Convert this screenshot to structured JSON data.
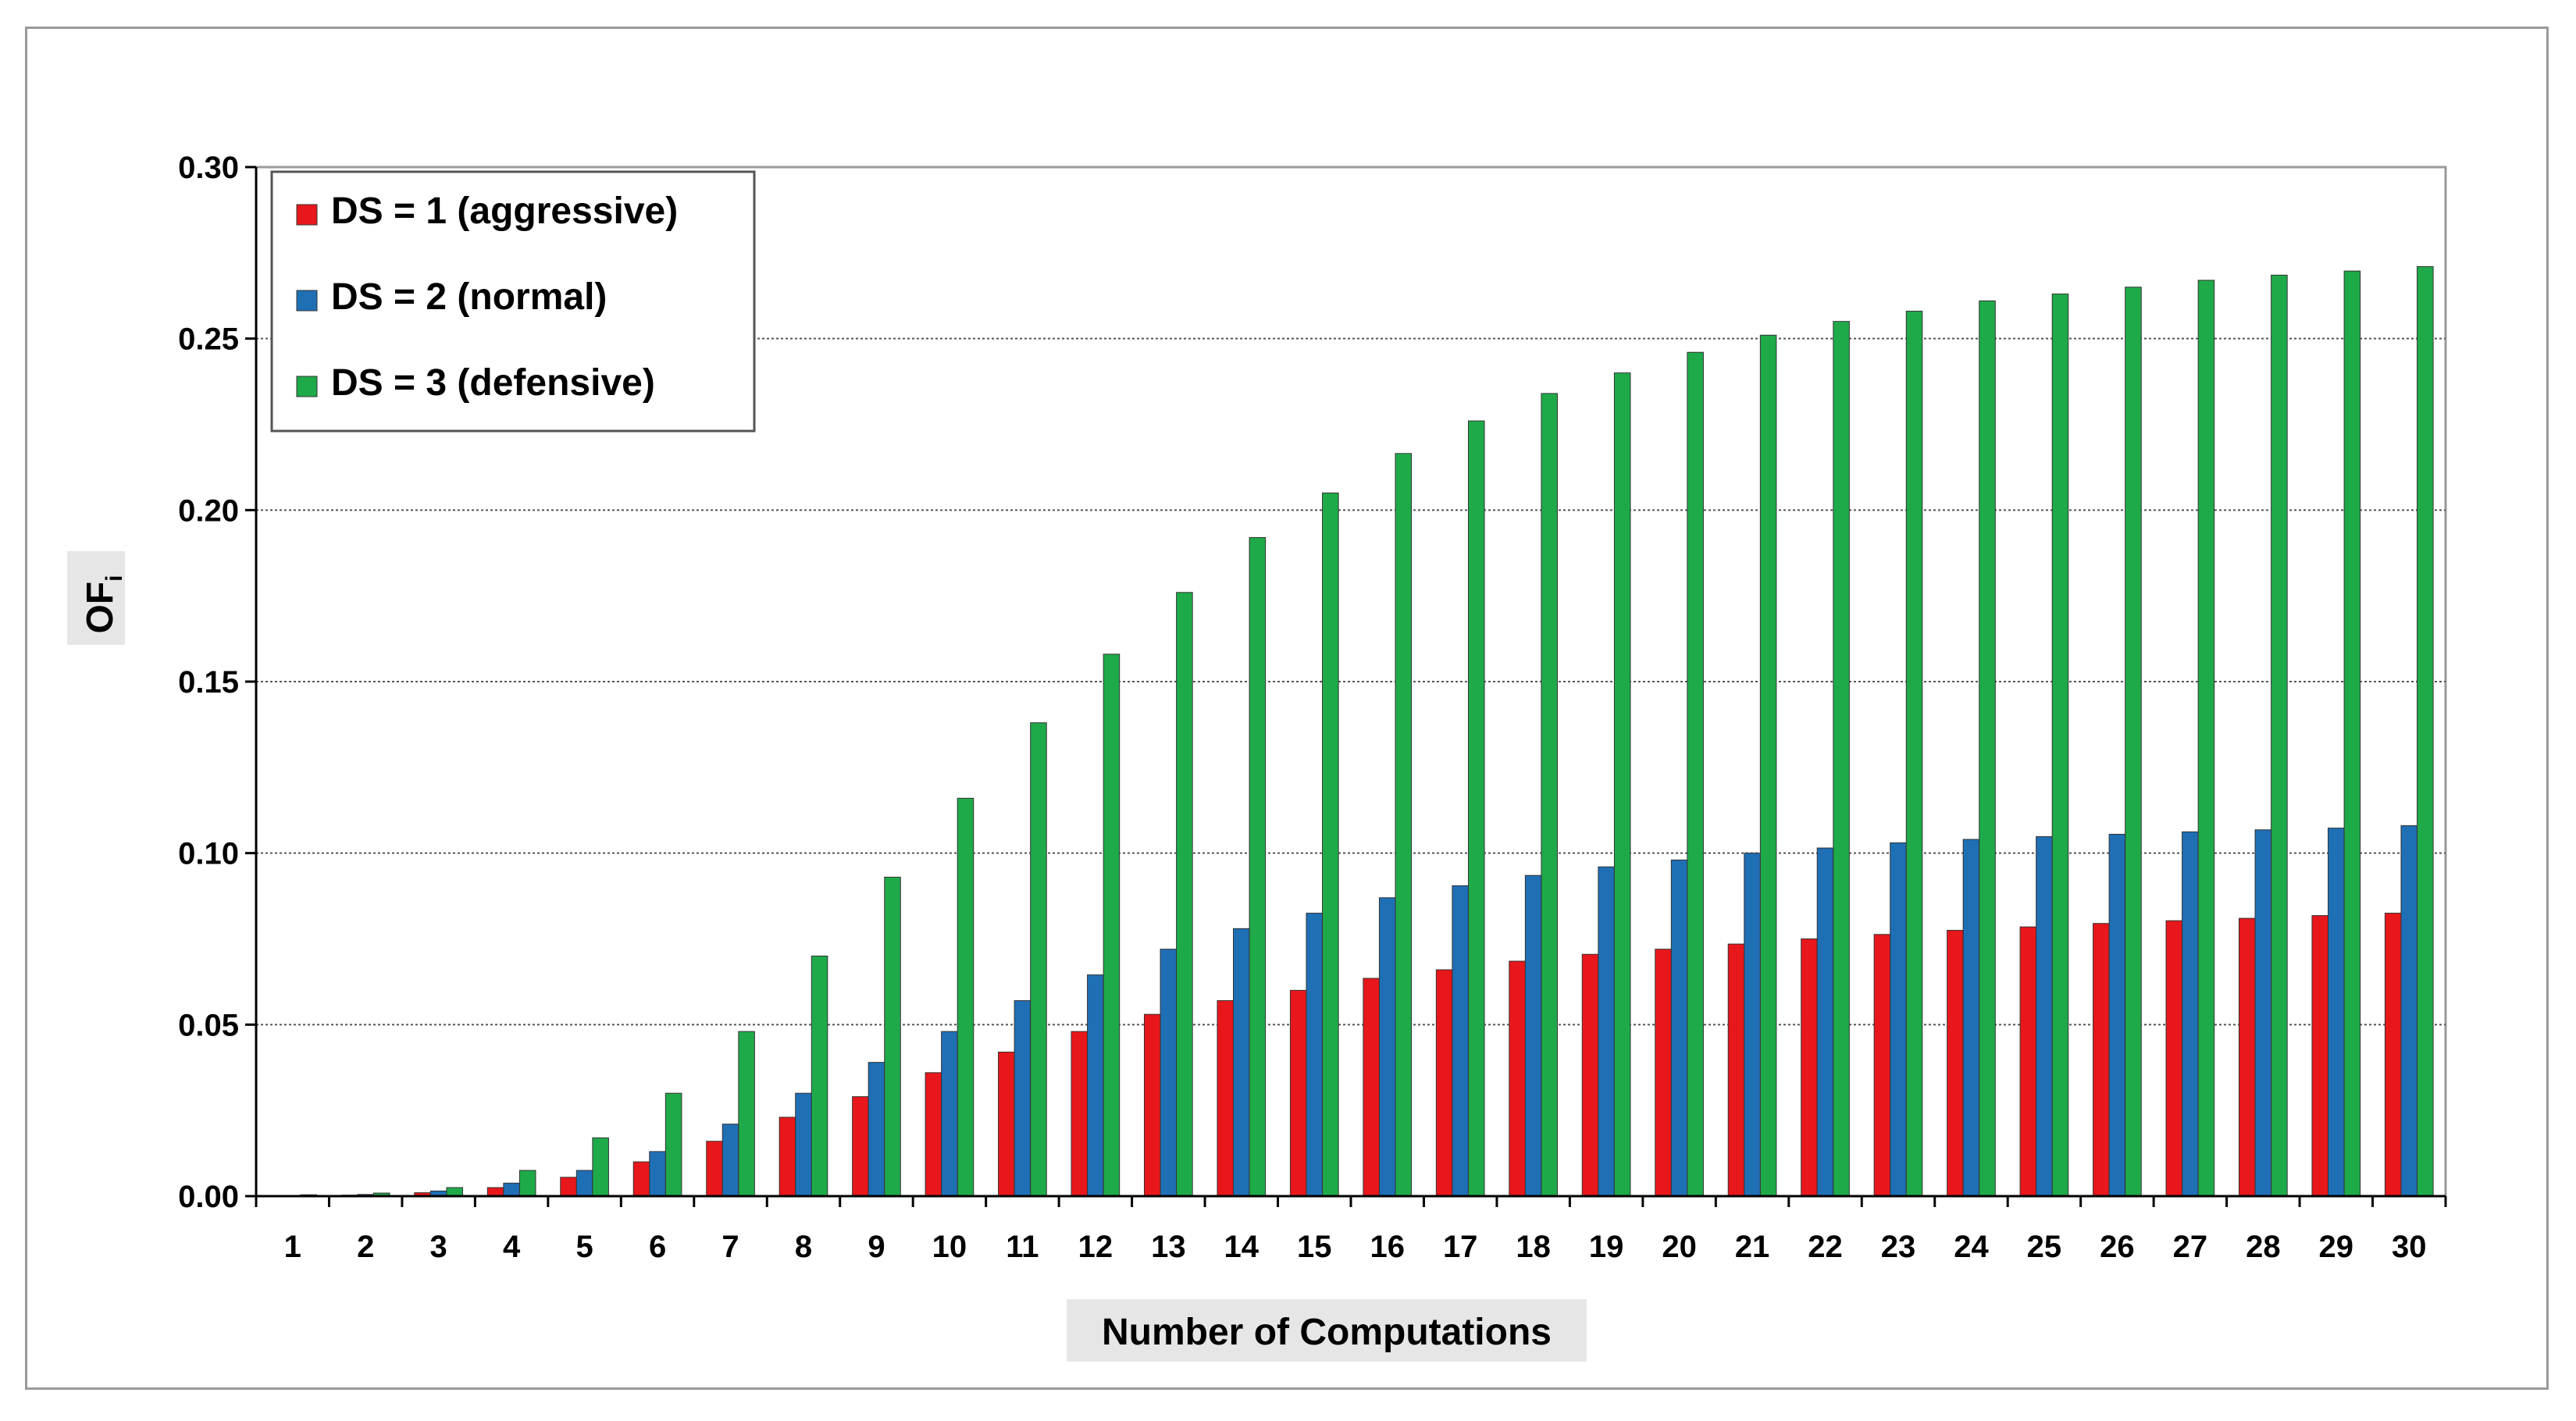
{
  "chart_data": {
    "type": "bar",
    "xlabel": "Number of Computations",
    "ylabel": "OF",
    "ylabel_subscript": "i",
    "ylim": [
      0,
      0.3
    ],
    "yticks": [
      "0.00",
      "0.05",
      "0.10",
      "0.15",
      "0.20",
      "0.25",
      "0.30"
    ],
    "grid": "horizontal dashed",
    "legend_position": "top-left",
    "categories": [
      "1",
      "2",
      "3",
      "4",
      "5",
      "6",
      "7",
      "8",
      "9",
      "10",
      "11",
      "12",
      "13",
      "14",
      "15",
      "16",
      "17",
      "18",
      "19",
      "20",
      "21",
      "22",
      "23",
      "24",
      "25",
      "26",
      "27",
      "28",
      "29",
      "30"
    ],
    "series": [
      {
        "name": "DS = 1 (aggressive)",
        "color": "#e8171b",
        "values": [
          0.0001,
          0.0003,
          0.001,
          0.0025,
          0.0055,
          0.01,
          0.016,
          0.023,
          0.029,
          0.036,
          0.042,
          0.048,
          0.053,
          0.057,
          0.06,
          0.0635,
          0.066,
          0.0685,
          0.0705,
          0.072,
          0.0735,
          0.075,
          0.0763,
          0.0775,
          0.0785,
          0.0795,
          0.0803,
          0.081,
          0.0818,
          0.0825
        ]
      },
      {
        "name": "DS = 2 (normal)",
        "color": "#1f6fb5",
        "values": [
          0.0002,
          0.0005,
          0.0015,
          0.0038,
          0.0075,
          0.013,
          0.021,
          0.03,
          0.039,
          0.048,
          0.057,
          0.0645,
          0.072,
          0.078,
          0.0825,
          0.087,
          0.0905,
          0.0935,
          0.096,
          0.098,
          0.1,
          0.1015,
          0.103,
          0.104,
          0.1048,
          0.1055,
          0.1062,
          0.1068,
          0.1073,
          0.108
        ]
      },
      {
        "name": "DS = 3 (defensive)",
        "color": "#1faa4a",
        "values": [
          0.0004,
          0.0009,
          0.0025,
          0.0075,
          0.017,
          0.03,
          0.048,
          0.07,
          0.093,
          0.116,
          0.138,
          0.158,
          0.176,
          0.192,
          0.205,
          0.2165,
          0.226,
          0.234,
          0.24,
          0.246,
          0.251,
          0.255,
          0.258,
          0.261,
          0.263,
          0.265,
          0.267,
          0.2685,
          0.2697,
          0.271
        ]
      }
    ]
  }
}
